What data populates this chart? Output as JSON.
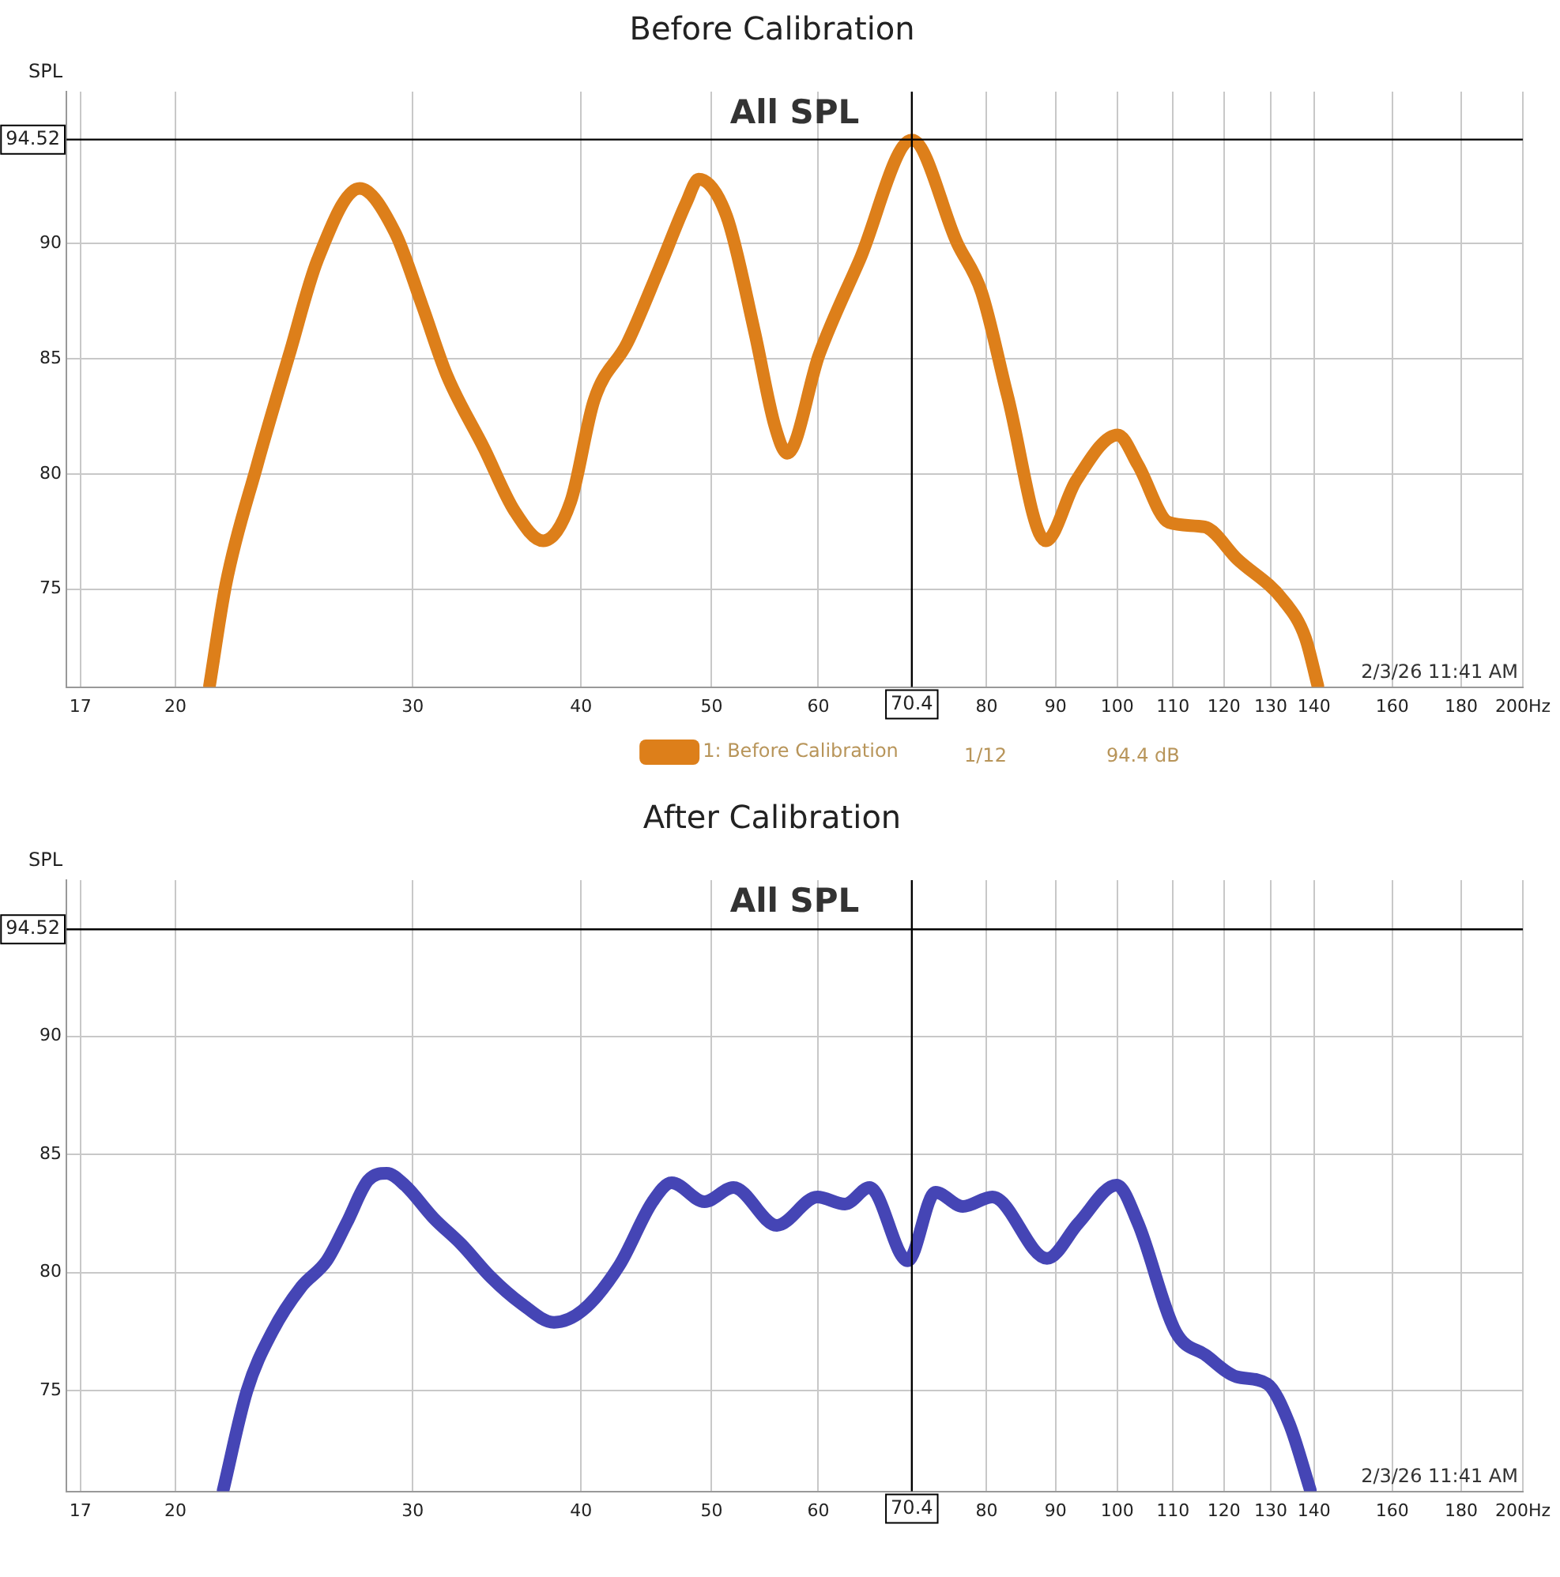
{
  "chart_data": [
    {
      "type": "line",
      "title": "Before Calibration",
      "ylabel": "SPL",
      "log": "x",
      "xlim": [
        16.6,
        200
      ],
      "xticks": [
        17,
        20,
        30,
        40,
        50,
        60,
        80,
        90,
        100,
        110,
        120,
        130,
        140,
        160,
        180,
        {
          "value": 200,
          "label": "200Hz"
        }
      ],
      "ylim": [
        70.75,
        96.6
      ],
      "yticks": [
        75,
        80,
        85,
        90
      ],
      "grid": true,
      "legend": "bottom",
      "series": [
        {
          "name": "1: Before Calibration",
          "color": "#dd7f1a",
          "x": [
            21.2,
            21.8,
            23.0,
            24.3,
            25.5,
            27.4,
            29.1,
            30.5,
            31.8,
            33.9,
            35.7,
            37.5,
            39.3,
            40.9,
            43.3,
            45.7,
            47.9,
            48.9,
            51.3,
            53.8,
            55.7,
            56.9,
            60.1,
            64.4,
            70.4,
            76.1,
            79.3,
            82.9,
            88.5,
            93.2,
            100.1,
            103.6,
            109.2,
            116.1,
            122.8,
            132.9,
            137.9,
            140.9
          ],
          "values": [
            70.8,
            75.2,
            80.4,
            85.2,
            89.3,
            92.4,
            90.5,
            87.3,
            84.3,
            81.1,
            78.4,
            77.1,
            78.8,
            83.2,
            85.7,
            88.9,
            91.8,
            92.8,
            91.2,
            86.2,
            82.1,
            80.9,
            85.2,
            89.3,
            94.5,
            90.0,
            87.9,
            83.4,
            77.1,
            79.7,
            81.7,
            80.4,
            77.9,
            77.7,
            76.3,
            74.5,
            72.9,
            70.8
          ]
        }
      ],
      "ref_lines": [
        {
          "axis": "x",
          "value": 70.4,
          "label": "70.4"
        },
        {
          "axis": "y",
          "value": 94.52,
          "label": "94.52"
        }
      ],
      "annotations": [
        "All SPL",
        "2/3/26 11:41 AM",
        "1/12",
        "94.4 dB"
      ]
    },
    {
      "type": "line",
      "title": "After Calibration",
      "ylabel": "SPL",
      "log": "x",
      "xlim": [
        16.6,
        200
      ],
      "xticks": [
        17,
        20,
        30,
        40,
        50,
        60,
        80,
        90,
        100,
        110,
        120,
        130,
        140,
        160,
        180,
        {
          "value": 200,
          "label": "200Hz"
        }
      ],
      "ylim": [
        70.75,
        96.6
      ],
      "yticks": [
        75,
        80,
        85,
        90
      ],
      "grid": true,
      "series": [
        {
          "color": "#4545b5",
          "x": [
            21.7,
            22.6,
            23.6,
            24.8,
            25.9,
            26.8,
            27.8,
            28.7,
            29.6,
            31.1,
            32.6,
            34.3,
            36.1,
            38.2,
            40.1,
            42.7,
            45.2,
            46.7,
            49.4,
            51.9,
            55.9,
            59.9,
            62.8,
            65.5,
            69.9,
            73.3,
            76.8,
            80.8,
            88.7,
            93.6,
            99.9,
            103.6,
            110.5,
            116.4,
            122.6,
            129.2,
            134.2,
            139.1
          ],
          "values": [
            70.8,
            75.0,
            77.5,
            79.4,
            80.5,
            82.1,
            83.9,
            84.2,
            83.7,
            82.3,
            81.2,
            79.8,
            78.7,
            77.9,
            78.4,
            80.3,
            83.0,
            83.8,
            83.0,
            83.6,
            82.0,
            83.2,
            82.9,
            83.6,
            80.5,
            83.4,
            82.8,
            83.2,
            80.6,
            82.1,
            83.7,
            82.1,
            77.5,
            76.5,
            75.6,
            75.3,
            73.6,
            70.8
          ]
        }
      ],
      "ref_lines": [
        {
          "axis": "x",
          "value": 70.4,
          "label": "70.4"
        },
        {
          "axis": "y",
          "value": 94.52,
          "label": "94.52"
        }
      ],
      "annotations": [
        "All SPL",
        "2/3/26 11:41 AM"
      ]
    }
  ]
}
